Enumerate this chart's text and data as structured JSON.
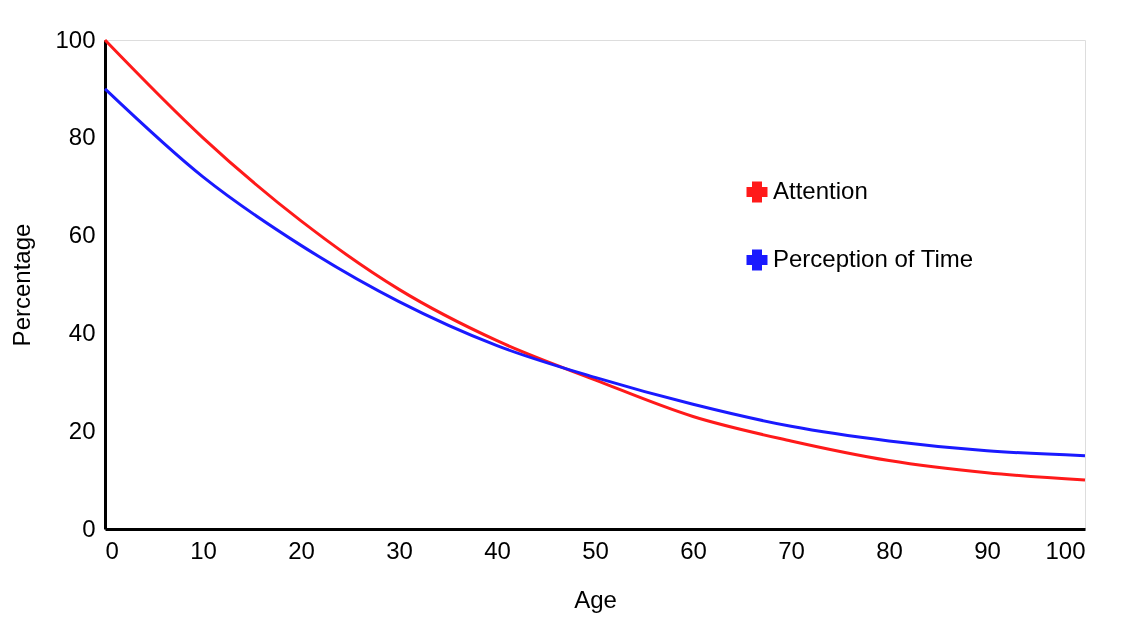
{
  "chart_data": {
    "type": "line",
    "xlabel": "Age",
    "ylabel": "Percentage",
    "x": [
      0,
      10,
      20,
      30,
      40,
      50,
      60,
      70,
      80,
      90,
      100
    ],
    "series": [
      {
        "name": "Attention",
        "color": "#ff1a1a",
        "values": [
          100,
          80,
          63,
          49,
          38.5,
          30.5,
          23,
          18,
          14,
          11.5,
          10
        ]
      },
      {
        "name": "Perception of Time",
        "color": "#1a1aff",
        "values": [
          90,
          72,
          58,
          46.5,
          37.5,
          31,
          25.5,
          21,
          18,
          16,
          15
        ]
      }
    ],
    "xlim": [
      0,
      100
    ],
    "xticks": [
      0,
      10,
      20,
      30,
      40,
      50,
      60,
      70,
      80,
      90,
      100
    ],
    "ylim": [
      0,
      100
    ],
    "yticks": [
      0,
      20,
      40,
      60,
      80,
      100
    ],
    "grid": false,
    "legend": "top right",
    "marker": "none",
    "line_style": "solid"
  }
}
